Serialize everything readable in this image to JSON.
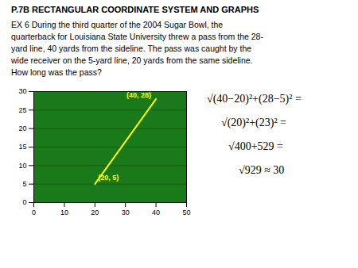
{
  "chart_data": {
    "type": "line",
    "title": "P.7B    RECTANGULAR COORDINATE SYSTEM AND GRAPHS",
    "subtitle": [
      "EX 6   During the third quarter of the 2004 Sugar Bowl, the",
      "quarterback for Louisiana State University threw a pass from the 28-",
      "yard line, 40 yards from the sideline.  The pass was caught by the",
      "wide receiver on the 5-yard line, 20 yards from the same sideline.",
      "How long was the pass?"
    ],
    "annotations": [
      "√(40−20)²+(28−5)² =",
      "√(20)²+(23)² =",
      "√400+529 =",
      "√929 ≈ 30"
    ],
    "x": [
      20,
      40
    ],
    "values": [
      5,
      28
    ],
    "value_labels": [
      "(20, 5)",
      "(40, 28)"
    ],
    "data_labels": true,
    "color": "#FFFF00",
    "xlim": [
      0,
      50
    ],
    "ylim": [
      0,
      30
    ],
    "xticks": [
      0,
      10,
      20,
      30,
      40,
      50
    ],
    "yticks": [
      0,
      5,
      10,
      15,
      20,
      25,
      30
    ],
    "grid": true
  }
}
